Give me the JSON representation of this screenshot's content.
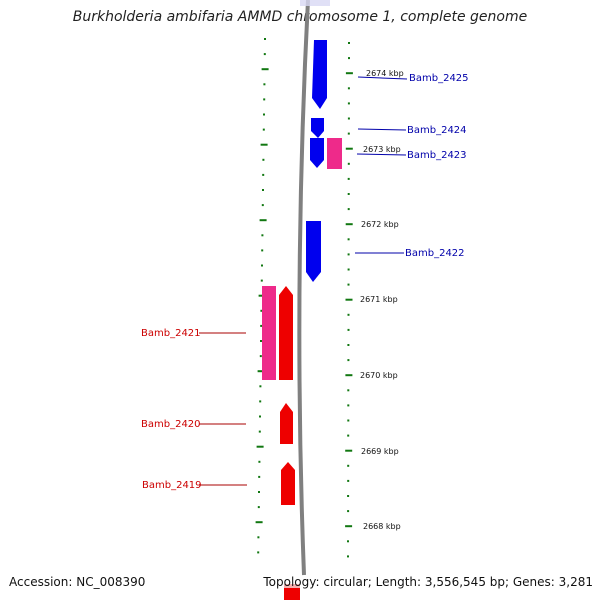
{
  "title": "Burkholderia ambifaria AMMD chromosome 1, complete genome",
  "footer": {
    "accession": "Accession: NC_008390",
    "summary": "Topology: circular; Length: 3,556,545 bp; Genes: 3,281"
  },
  "colors": {
    "forward_gene": "#0000ee",
    "reverse_gene": "#ee0000",
    "pseudo_gene": "#ee2a8a",
    "tick": "#117711",
    "backbone": "#808080"
  },
  "kbp_labels": [
    {
      "name": "kbp-2674",
      "text": "2674 kbp"
    },
    {
      "name": "kbp-2673",
      "text": "2673 kbp"
    },
    {
      "name": "kbp-2672",
      "text": "2672 kbp"
    },
    {
      "name": "kbp-2671",
      "text": "2671 kbp"
    },
    {
      "name": "kbp-2670",
      "text": "2670 kbp"
    },
    {
      "name": "kbp-2669",
      "text": "2669 kbp"
    },
    {
      "name": "kbp-2668",
      "text": "2668 kbp"
    }
  ],
  "genes": [
    {
      "name": "Bamb_2425",
      "strand": "forward"
    },
    {
      "name": "Bamb_2424",
      "strand": "forward"
    },
    {
      "name": "Bamb_2423",
      "strand": "forward"
    },
    {
      "name": "Bamb_2422",
      "strand": "forward"
    },
    {
      "name": "Bamb_2421",
      "strand": "reverse"
    },
    {
      "name": "Bamb_2420",
      "strand": "reverse"
    },
    {
      "name": "Bamb_2419",
      "strand": "reverse"
    }
  ]
}
